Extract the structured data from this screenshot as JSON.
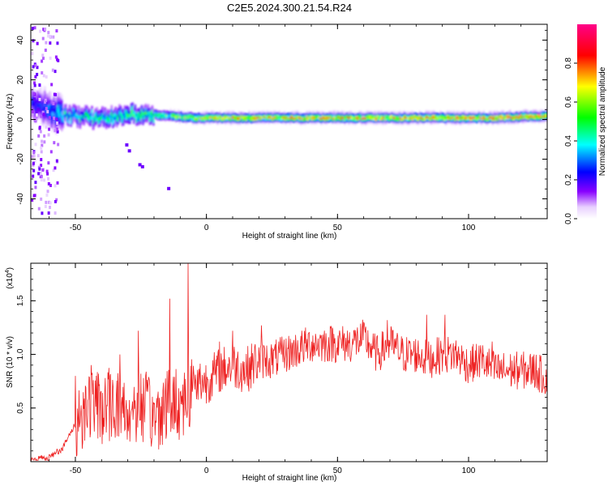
{
  "title": "C2E5.2024.300.21.54.R24",
  "chart_data": [
    {
      "type": "heatmap",
      "xlabel": "Height of straight line (km)",
      "ylabel": "Frequency (Hz)",
      "xlim": [
        -67,
        130
      ],
      "ylim": [
        -50,
        48
      ],
      "x_ticks": [
        -50,
        0,
        50,
        100
      ],
      "x_tick_labels": [
        "-50",
        "0",
        "50",
        "100"
      ],
      "y_ticks": [
        -40,
        -20,
        0,
        20,
        40
      ],
      "y_tick_labels": [
        "-40",
        "-20",
        "0",
        "20",
        "40"
      ],
      "colorbar": {
        "label": "Normalized spectral amplitude",
        "range": [
          0,
          1
        ],
        "ticks": [
          0,
          0.2,
          0.4,
          0.6,
          0.8
        ],
        "tick_labels": [
          "0.0",
          "0.2",
          "0.4",
          "0.6",
          "0.8"
        ],
        "colormap": [
          "#ffffff",
          "#8800ff",
          "#0000ff",
          "#00ffff",
          "#00ff00",
          "#ffff00",
          "#ff0000",
          "#ff0088"
        ]
      },
      "ridge": {
        "description_x": [
          -67,
          -62,
          -55,
          -45,
          -35,
          -25,
          -15,
          -5,
          10,
          30,
          50,
          70,
          90,
          110,
          130
        ],
        "frequency": [
          8,
          6,
          2,
          1,
          2,
          3,
          2,
          1,
          1,
          1,
          1,
          1,
          1,
          1,
          2
        ],
        "peak_amplitude": [
          0.25,
          0.3,
          0.45,
          0.5,
          0.55,
          0.55,
          0.6,
          0.75,
          0.8,
          0.8,
          0.85,
          0.85,
          0.85,
          0.9,
          0.9
        ]
      },
      "grid": false
    },
    {
      "type": "line",
      "xlabel": "Height of straight line (km)",
      "ylabel": "SNR (10 * v/v)",
      "y_multiplier": "(x10",
      "y_multiplier_exp": "4",
      "xlim": [
        -67,
        130
      ],
      "ylim": [
        0,
        1.85
      ],
      "x_ticks": [
        -50,
        0,
        50,
        100
      ],
      "x_tick_labels": [
        "-50",
        "0",
        "50",
        "100"
      ],
      "y_ticks": [
        0.5,
        1.0,
        1.5
      ],
      "y_tick_labels": [
        "0.5",
        "1.0",
        "1.5"
      ],
      "line_color": "#ee2222",
      "series": [
        {
          "x": [
            -67,
            -60,
            -55,
            -50,
            -45,
            -40,
            -35,
            -30,
            -25,
            -20,
            -15,
            -10,
            -7,
            -5,
            0,
            5,
            10,
            15,
            20,
            25,
            30,
            35,
            40,
            45,
            50,
            55,
            60,
            65,
            70,
            75,
            80,
            85,
            90,
            95,
            100,
            105,
            110,
            115,
            120,
            125,
            130
          ],
          "y": [
            0.02,
            0.04,
            0.12,
            0.35,
            0.55,
            0.5,
            0.55,
            0.45,
            0.55,
            0.4,
            0.55,
            0.55,
            0.6,
            0.75,
            0.75,
            0.85,
            0.9,
            0.85,
            0.95,
            0.95,
            1.0,
            1.05,
            1.1,
            1.1,
            1.1,
            1.1,
            1.15,
            1.0,
            1.1,
            1.0,
            1.0,
            0.95,
            1.0,
            1.0,
            0.9,
            0.95,
            0.85,
            0.85,
            0.85,
            0.85,
            0.78
          ],
          "spikes": [
            {
              "x": -57,
              "y": 0.12
            },
            {
              "x": -50,
              "y": 0.8
            },
            {
              "x": -44,
              "y": 0.9
            },
            {
              "x": -33,
              "y": 1.0
            },
            {
              "x": -26,
              "y": 1.22
            },
            {
              "x": -14,
              "y": 1.52
            },
            {
              "x": -7,
              "y": 1.85
            },
            {
              "x": 5,
              "y": 1.12
            },
            {
              "x": 10,
              "y": 1.22
            },
            {
              "x": 21,
              "y": 1.27
            },
            {
              "x": 48,
              "y": 1.25
            },
            {
              "x": 60,
              "y": 1.3
            },
            {
              "x": 69,
              "y": 1.32
            },
            {
              "x": 84,
              "y": 1.37
            },
            {
              "x": 91,
              "y": 1.37
            },
            {
              "x": 109,
              "y": 1.12
            },
            {
              "x": 125,
              "y": 1.0
            }
          ]
        }
      ],
      "grid": false
    }
  ]
}
